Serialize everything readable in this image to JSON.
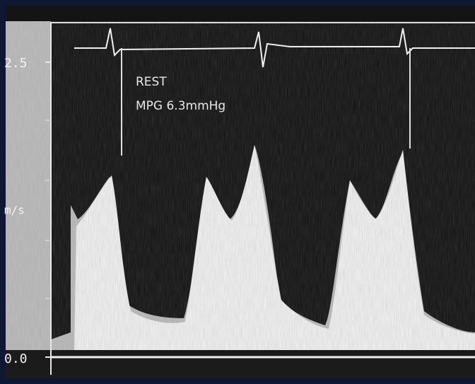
{
  "scale": {
    "top": "2.5",
    "unit": "m/s",
    "bottom": "0.0"
  },
  "annotation": {
    "condition": "REST",
    "gradient": "MPG 6.3mmHg"
  }
}
